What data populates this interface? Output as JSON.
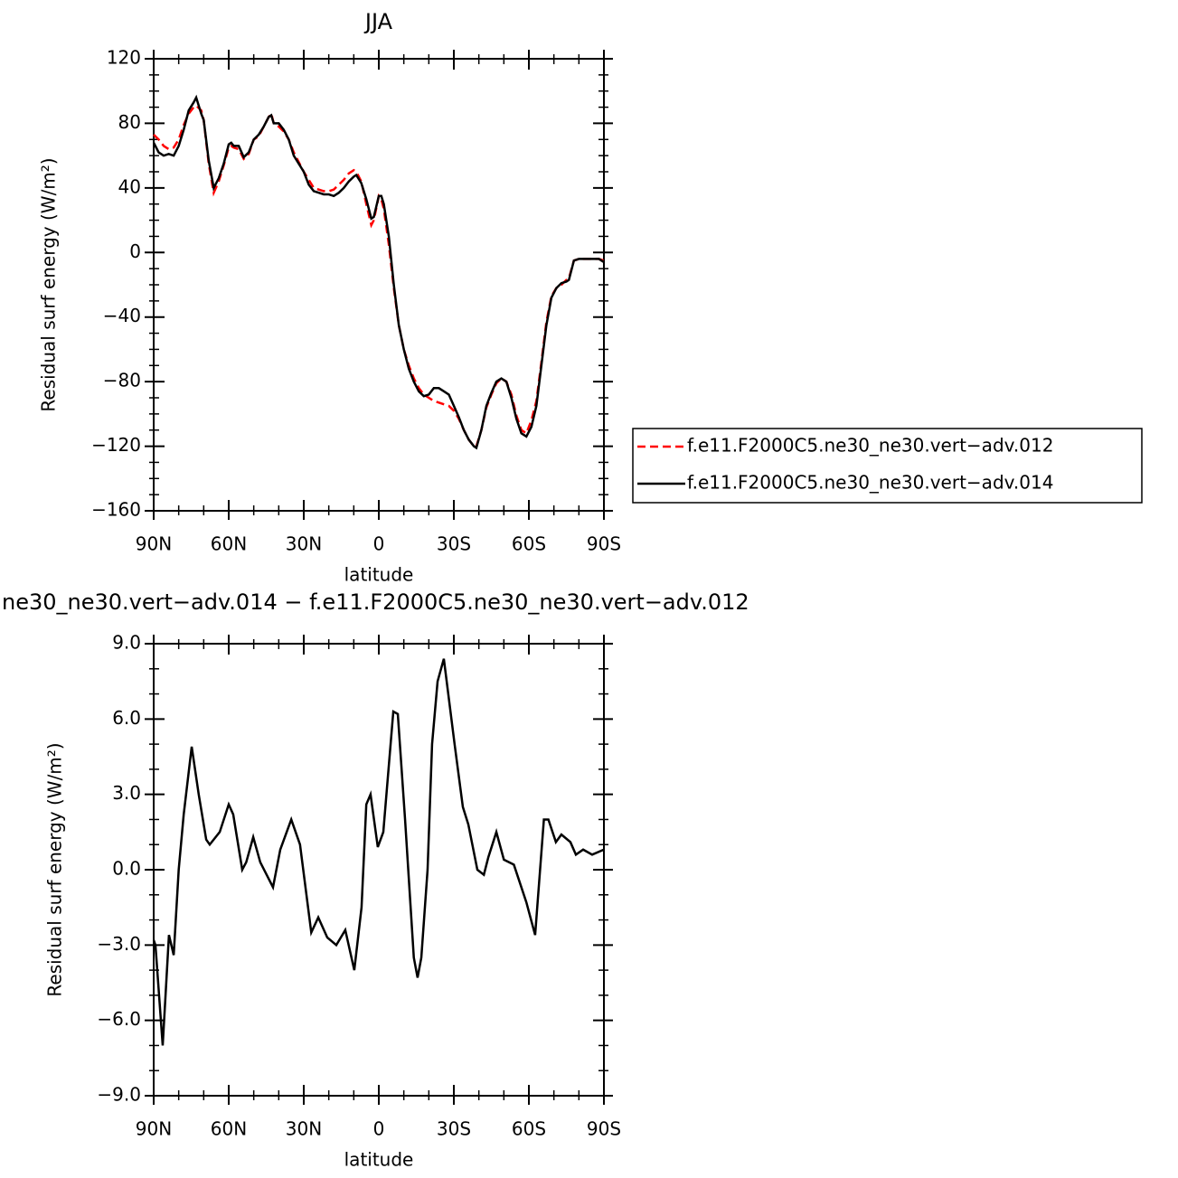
{
  "chart_data": [
    {
      "type": "line",
      "title": "JJA",
      "x_label": "latitude",
      "y_label": "Residual surf energy (W/m²)",
      "x": [
        90,
        88,
        86,
        84,
        82,
        80,
        78,
        76,
        74,
        73,
        71,
        70,
        68,
        66,
        64,
        62,
        60,
        59,
        58,
        56,
        54,
        52,
        50,
        48,
        46,
        44,
        43,
        42,
        40,
        38,
        36,
        34,
        32,
        30,
        28,
        26,
        24,
        22,
        20,
        18,
        16,
        14,
        12,
        10,
        9,
        7,
        5,
        3,
        2,
        0,
        -1,
        -2,
        -4,
        -6,
        -8,
        -10,
        -12,
        -14,
        -16,
        -18,
        -20,
        -22,
        -24,
        -26,
        -28,
        -30,
        -32,
        -34,
        -36,
        -38,
        -39,
        -41,
        -43,
        -45,
        -47,
        -49,
        -51,
        -53,
        -55,
        -57,
        -59,
        -61,
        -63,
        -65,
        -67,
        -69,
        -71,
        -73,
        -75,
        -76,
        -78,
        -80,
        -84,
        -88,
        -90
      ],
      "series": [
        {
          "name": "f.e11.F2000C5.ne30_ne30.vert−adv.012",
          "color": "#ff0000",
          "dash": "dashed",
          "values": [
            73,
            70,
            66,
            64,
            65,
            70,
            79,
            86,
            90,
            91,
            88,
            82,
            55,
            37,
            44,
            54,
            65,
            66,
            65,
            64,
            58,
            61,
            70,
            72,
            78,
            84,
            86,
            80,
            78,
            75,
            70,
            62,
            56,
            50,
            45,
            40,
            39,
            38,
            38,
            39,
            42,
            45,
            49,
            51,
            50,
            44,
            30,
            17,
            20,
            35,
            33,
            27,
            5,
            -22,
            -45,
            -60,
            -70,
            -78,
            -84,
            -88,
            -90,
            -92,
            -93,
            -94,
            -95,
            -98,
            -103,
            -110,
            -116,
            -120,
            -120,
            -110,
            -96,
            -88,
            -81,
            -78,
            -80,
            -88,
            -101,
            -110,
            -112,
            -104,
            -92,
            -68,
            -43,
            -27,
            -22,
            -20,
            -17,
            -16,
            -5,
            -4,
            -4,
            -4,
            -5
          ]
        },
        {
          "name": "f.e11.F2000C5.ne30_ne30.vert−adv.014",
          "color": "#000000",
          "dash": "solid",
          "values": [
            68,
            62,
            60,
            61,
            60,
            66,
            76,
            88,
            93,
            96,
            86,
            82,
            57,
            40,
            46,
            55,
            67,
            68,
            66,
            66,
            59,
            62,
            70,
            73,
            78,
            84,
            85,
            80,
            80,
            76,
            70,
            60,
            55,
            50,
            42,
            38,
            37,
            36,
            36,
            35,
            37,
            40,
            44,
            47,
            48,
            43,
            33,
            21,
            22,
            35,
            35,
            30,
            10,
            -20,
            -45,
            -60,
            -72,
            -80,
            -86,
            -89,
            -88,
            -84,
            -84,
            -86,
            -88,
            -95,
            -102,
            -110,
            -116,
            -120,
            -121,
            -110,
            -95,
            -87,
            -80,
            -78,
            -80,
            -90,
            -103,
            -112,
            -114,
            -108,
            -95,
            -70,
            -45,
            -28,
            -22,
            -19,
            -18,
            -17,
            -5,
            -4,
            -4,
            -4,
            -6
          ]
        }
      ],
      "xlim": [
        90,
        -90
      ],
      "xticks": [
        {
          "value": 90,
          "label": "90N"
        },
        {
          "value": 60,
          "label": "60N"
        },
        {
          "value": 30,
          "label": "30N"
        },
        0,
        {
          "value": -30,
          "label": "30S"
        },
        {
          "value": -60,
          "label": "60S"
        },
        {
          "value": -90,
          "label": "90S"
        }
      ],
      "ylim": [
        -160,
        120
      ],
      "yticks": [
        {
          "value": 120,
          "label": "120"
        },
        {
          "value": 80,
          "label": "80"
        },
        {
          "value": 40,
          "label": "40"
        },
        0,
        {
          "value": -40,
          "label": "−40"
        },
        {
          "value": -80,
          "label": "−80"
        },
        {
          "value": -120,
          "label": "−120"
        },
        {
          "value": -160,
          "label": "−160"
        }
      ],
      "legend": "right"
    },
    {
      "type": "line",
      "title": "ne30_ne30.vert−adv.014 − f.e11.F2000C5.ne30_ne30.vert−adv.012",
      "x_label": "latitude",
      "y_label": "Residual surf energy (W/m²)",
      "x": [
        90,
        89.3,
        86.4,
        83.9,
        82,
        80,
        78,
        74.8,
        72,
        69,
        67.6,
        63.6,
        60,
        58.2,
        54.6,
        53,
        50.2,
        47.4,
        42.3,
        39.4,
        35,
        31.5,
        27,
        24.2,
        20.6,
        17,
        13.4,
        9.8,
        6.9,
        5,
        3.3,
        0.4,
        -1.8,
        -5.8,
        -7.6,
        -10.5,
        -14,
        -15.5,
        -17,
        -19.5,
        -21.3,
        -23.5,
        -26,
        -30.3,
        -33.6,
        -35.8,
        -39.4,
        -42,
        -43.8,
        -47,
        -50,
        -54,
        -59,
        -62.5,
        -66,
        -67.8,
        -70.8,
        -73,
        -76.6,
        -78.8,
        -81.7,
        -85.3,
        -90
      ],
      "series": [
        {
          "color": "#000000",
          "values": [
            -2.8,
            -3.0,
            -7.0,
            -2.6,
            -3.4,
            0.0,
            2.2,
            4.9,
            3.0,
            1.2,
            1.0,
            1.5,
            2.6,
            2.2,
            0.0,
            0.3,
            1.3,
            0.3,
            -0.7,
            0.8,
            2.0,
            1.0,
            -2.5,
            -1.9,
            -2.7,
            -3.0,
            -2.4,
            -4.0,
            -1.5,
            2.6,
            3.0,
            0.9,
            1.5,
            6.3,
            6.2,
            2.0,
            -3.5,
            -4.3,
            -3.5,
            0.0,
            5.0,
            7.5,
            8.4,
            5.0,
            2.5,
            1.8,
            0.0,
            -0.2,
            0.5,
            1.5,
            0.4,
            0.2,
            -1.3,
            -2.6,
            2.0,
            2.0,
            1.1,
            1.4,
            1.1,
            0.6,
            0.8,
            0.6,
            0.8
          ]
        }
      ],
      "xlim": [
        90,
        -90
      ],
      "xticks": [
        {
          "value": 90,
          "label": "90N"
        },
        {
          "value": 60,
          "label": "60N"
        },
        {
          "value": 30,
          "label": "30N"
        },
        0,
        {
          "value": -30,
          "label": "30S"
        },
        {
          "value": -60,
          "label": "60S"
        },
        {
          "value": -90,
          "label": "90S"
        }
      ],
      "ylim": [
        -9,
        9
      ],
      "yticks": [
        {
          "value": 9,
          "label": "9.0"
        },
        {
          "value": 6,
          "label": "6.0"
        },
        {
          "value": 3,
          "label": "3.0"
        },
        {
          "value": 0,
          "label": "0.0"
        },
        {
          "value": -3,
          "label": "−3.0"
        },
        {
          "value": -6,
          "label": "−6.0"
        },
        {
          "value": -9,
          "label": "−9.0"
        }
      ]
    }
  ]
}
